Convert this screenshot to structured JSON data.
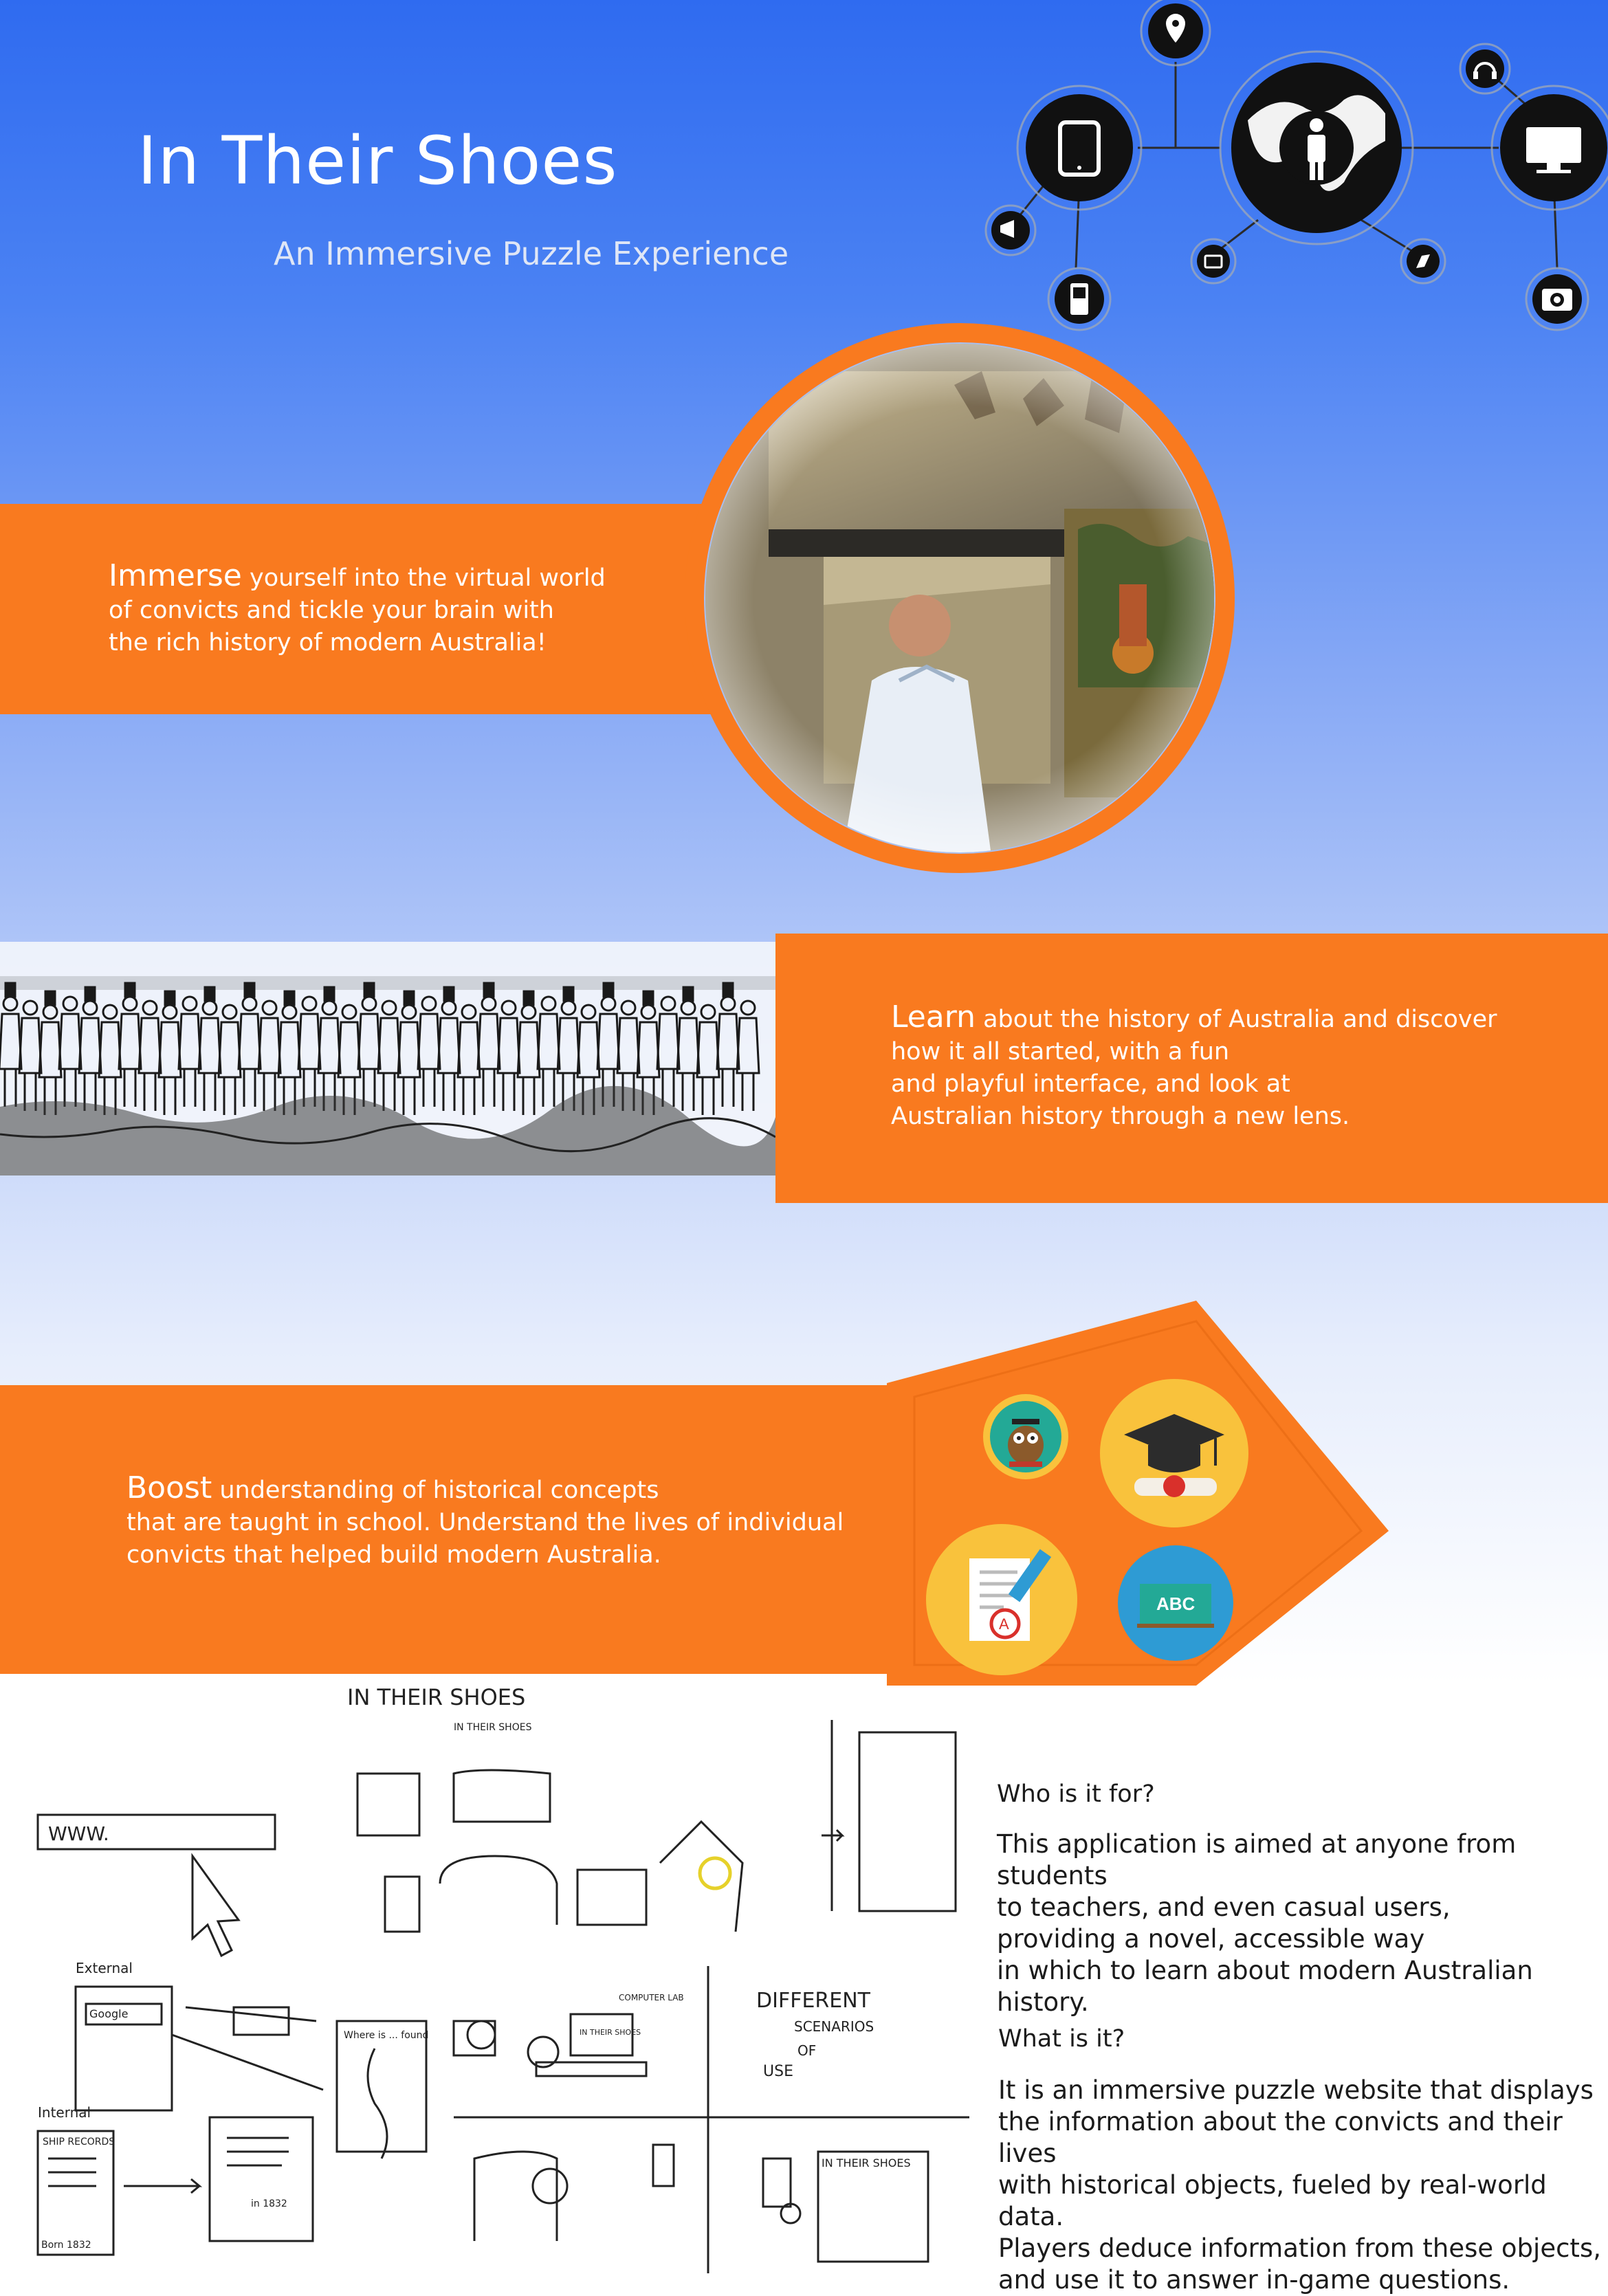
{
  "header": {
    "title": "In Their Shoes",
    "subtitle": "An Immersive Puzzle Experience"
  },
  "device_icons": [
    "location-pin-icon",
    "tablet-icon",
    "person-globe-icon",
    "monitor-icon",
    "headphones-icon",
    "megaphone-icon",
    "phone-icon",
    "tv-icon",
    "compass-icon",
    "camera-icon"
  ],
  "section_immerse": {
    "lead": "Immerse",
    "line1": " yourself into the virtual world",
    "line2": "of convicts and tickle your brain with",
    "line3": "the rich history of modern Australia!"
  },
  "section_learn": {
    "lead": "Learn",
    "line1": " about the history of Australia  and discover",
    "line2": "how it all started, with a fun",
    "line3": "and playful interface, and look at",
    "line4": " Australian history through a new lens."
  },
  "section_boost": {
    "lead": "Boost",
    "line1": " understanding of historical concepts",
    "line2": "that are taught in school. Understand the lives of individual",
    "line3": "convicts that helped build modern Australia."
  },
  "education_icons": {
    "owl": "owl-icon",
    "cap": "graduation-cap-icon",
    "paper": "graded-paper-icon",
    "board_text": "ABC"
  },
  "sketch": {
    "title": "IN THEIR SHOES",
    "subtitle": "IN THEIR SHOES",
    "url_box": "WWW.",
    "label_external": "External",
    "label_google": "Google",
    "label_internal": "Internal",
    "label_ship": "SHIP RECORDS",
    "label_where": "Where is ... found",
    "label_scenarios1": "DIFFERENT",
    "label_scenarios2": "SCENARIOS",
    "label_scenarios3": "OF",
    "label_scenarios4": "USE",
    "label_year1": "Born 1832",
    "label_year2": "in 1832",
    "label_computer": "COMPUTER LAB",
    "label_screen": "IN THEIR SHOES",
    "label_panel": "IN THEIR SHOES"
  },
  "who": {
    "heading": "Who is it for?",
    "line1": "This application is aimed at anyone from students",
    "line2": "to teachers, and even casual users,",
    "line3": "providing a novel, accessible way",
    "line4": "in which to learn about modern Australian history."
  },
  "what": {
    "heading": "What is it?",
    "line1": "It is an immersive puzzle website that displays",
    "line2": "the information about the convicts and their lives",
    "line3": "with historical objects, fueled by real-world data.",
    "line4": "Players deduce information from these objects,",
    "line5": " and use it to answer in-game questions."
  },
  "colors": {
    "accent": "#f97a1f",
    "sky_top": "#2f6bf0",
    "icon_bg": "#111111"
  }
}
